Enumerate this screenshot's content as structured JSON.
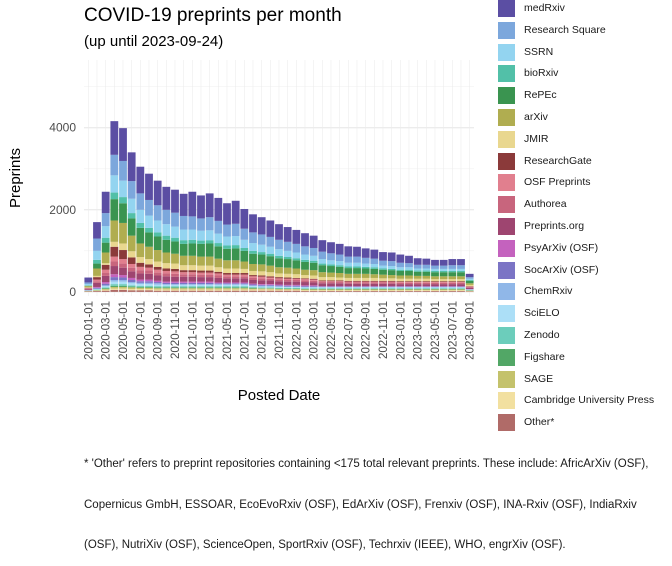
{
  "chart_data": {
    "type": "bar",
    "stacked": true,
    "title": "COVID-19 preprints per month",
    "subtitle": "(up until 2023-09-24)",
    "xlabel": "Posted Date",
    "ylabel": "Preprints",
    "ylim": [
      -100,
      5650
    ],
    "yticks": [
      0,
      2000,
      4000
    ],
    "grid": true,
    "legend_position": "right",
    "categories": [
      "2020-01-01",
      "2020-02-01",
      "2020-03-01",
      "2020-04-01",
      "2020-05-01",
      "2020-06-01",
      "2020-07-01",
      "2020-08-01",
      "2020-09-01",
      "2020-10-01",
      "2020-11-01",
      "2020-12-01",
      "2021-01-01",
      "2021-02-01",
      "2021-03-01",
      "2021-04-01",
      "2021-05-01",
      "2021-06-01",
      "2021-07-01",
      "2021-08-01",
      "2021-09-01",
      "2021-10-01",
      "2021-11-01",
      "2021-12-01",
      "2022-01-01",
      "2022-02-01",
      "2022-03-01",
      "2022-04-01",
      "2022-05-01",
      "2022-06-01",
      "2022-07-01",
      "2022-08-01",
      "2022-09-01",
      "2022-10-01",
      "2022-11-01",
      "2022-12-01",
      "2023-01-01",
      "2023-02-01",
      "2023-03-01",
      "2023-04-01",
      "2023-05-01",
      "2023-06-01",
      "2023-07-01",
      "2023-08-01",
      "2023-09-01"
    ],
    "tick_labels": [
      "2020-01-01",
      "2020-03-01",
      "2020-05-01",
      "2020-07-01",
      "2020-09-01",
      "2020-11-01",
      "2021-01-01",
      "2021-03-01",
      "2021-05-01",
      "2021-07-01",
      "2021-09-01",
      "2021-11-01",
      "2022-01-01",
      "2022-03-01",
      "2022-05-01",
      "2022-07-01",
      "2022-09-01",
      "2022-11-01",
      "2023-01-01",
      "2023-03-01",
      "2023-05-01",
      "2023-07-01",
      "2023-09-01"
    ],
    "series": [
      {
        "name": "medRxiv",
        "color": "#5b4ea3",
        "values": [
          120,
          400,
          520,
          820,
          800,
          700,
          650,
          640,
          600,
          560,
          560,
          540,
          600,
          560,
          580,
          560,
          520,
          560,
          480,
          440,
          420,
          400,
          380,
          360,
          340,
          320,
          300,
          280,
          270,
          260,
          250,
          240,
          230,
          220,
          210,
          210,
          200,
          180,
          160,
          150,
          140,
          140,
          150,
          150,
          80
        ]
      },
      {
        "name": "Research Square",
        "color": "#7ca7dc",
        "values": [
          40,
          300,
          320,
          500,
          480,
          430,
          400,
          380,
          370,
          350,
          340,
          330,
          320,
          300,
          320,
          310,
          290,
          300,
          270,
          260,
          250,
          240,
          230,
          220,
          210,
          200,
          190,
          180,
          170,
          160,
          150,
          150,
          140,
          130,
          120,
          120,
          110,
          100,
          90,
          90,
          80,
          80,
          90,
          90,
          40
        ]
      },
      {
        "name": "SSRN",
        "color": "#93d4f0",
        "values": [
          30,
          220,
          280,
          420,
          400,
          350,
          320,
          300,
          290,
          280,
          270,
          260,
          250,
          240,
          240,
          230,
          220,
          220,
          200,
          190,
          180,
          170,
          160,
          150,
          140,
          130,
          120,
          110,
          100,
          100,
          90,
          90,
          80,
          80,
          70,
          70,
          60,
          60,
          50,
          50,
          50,
          50,
          50,
          50,
          30
        ]
      },
      {
        "name": "bioRxiv",
        "color": "#52c0a8",
        "values": [
          10,
          90,
          120,
          160,
          150,
          130,
          120,
          110,
          100,
          100,
          90,
          90,
          90,
          80,
          80,
          80,
          80,
          80,
          70,
          70,
          60,
          60,
          60,
          50,
          50,
          50,
          50,
          40,
          40,
          40,
          40,
          40,
          40,
          40,
          30,
          30,
          30,
          30,
          30,
          30,
          30,
          30,
          30,
          30,
          20
        ]
      },
      {
        "name": "RePEc",
        "color": "#3a9450",
        "values": [
          10,
          120,
          240,
          520,
          480,
          420,
          380,
          350,
          330,
          310,
          300,
          290,
          300,
          310,
          320,
          300,
          280,
          290,
          260,
          250,
          240,
          230,
          220,
          210,
          200,
          190,
          180,
          170,
          160,
          150,
          140,
          140,
          130,
          130,
          120,
          120,
          110,
          110,
          100,
          100,
          100,
          100,
          100,
          100,
          60
        ]
      },
      {
        "name": "arXiv",
        "color": "#b0ad50",
        "values": [
          30,
          180,
          260,
          520,
          500,
          380,
          330,
          300,
          280,
          260,
          240,
          230,
          230,
          220,
          220,
          210,
          200,
          200,
          180,
          170,
          170,
          160,
          150,
          150,
          140,
          130,
          130,
          120,
          110,
          110,
          100,
          100,
          100,
          90,
          90,
          80,
          80,
          80,
          70,
          70,
          70,
          70,
          70,
          70,
          40
        ]
      },
      {
        "name": "JMIR",
        "color": "#e9d78f",
        "values": [
          10,
          30,
          40,
          120,
          160,
          150,
          140,
          130,
          130,
          130,
          130,
          120,
          120,
          120,
          120,
          110,
          110,
          110,
          100,
          100,
          100,
          100,
          90,
          90,
          90,
          80,
          80,
          80,
          80,
          70,
          70,
          70,
          70,
          70,
          60,
          60,
          60,
          60,
          60,
          60,
          50,
          50,
          50,
          50,
          30
        ]
      },
      {
        "name": "ResearchGate",
        "color": "#8b3a3a",
        "values": [
          10,
          60,
          120,
          240,
          220,
          160,
          100,
          80,
          70,
          60,
          60,
          50,
          50,
          50,
          50,
          40,
          40,
          40,
          40,
          30,
          30,
          30,
          30,
          30,
          20,
          20,
          20,
          20,
          20,
          20,
          20,
          20,
          20,
          20,
          20,
          20,
          20,
          20,
          20,
          20,
          20,
          20,
          20,
          20,
          10
        ]
      },
      {
        "name": "OSF Preprints",
        "color": "#e17f8e",
        "values": [
          10,
          40,
          80,
          120,
          110,
          90,
          80,
          70,
          70,
          60,
          60,
          50,
          50,
          50,
          50,
          50,
          40,
          40,
          40,
          40,
          40,
          30,
          30,
          30,
          30,
          30,
          30,
          20,
          20,
          20,
          20,
          20,
          20,
          20,
          20,
          20,
          20,
          20,
          20,
          20,
          20,
          20,
          20,
          20,
          10
        ]
      },
      {
        "name": "Authorea",
        "color": "#c8657d",
        "values": [
          10,
          40,
          70,
          110,
          100,
          90,
          80,
          80,
          70,
          70,
          70,
          60,
          60,
          60,
          60,
          60,
          50,
          50,
          50,
          50,
          50,
          40,
          40,
          40,
          40,
          40,
          40,
          30,
          30,
          30,
          30,
          30,
          30,
          30,
          30,
          30,
          30,
          30,
          30,
          30,
          30,
          30,
          30,
          30,
          20
        ]
      },
      {
        "name": "Preprints.org",
        "color": "#9e4570",
        "values": [
          20,
          100,
          150,
          200,
          180,
          160,
          150,
          140,
          130,
          130,
          120,
          120,
          120,
          110,
          110,
          110,
          100,
          100,
          100,
          90,
          90,
          90,
          80,
          80,
          80,
          80,
          70,
          70,
          70,
          70,
          60,
          60,
          60,
          60,
          60,
          60,
          50,
          50,
          50,
          50,
          50,
          50,
          50,
          50,
          30
        ]
      },
      {
        "name": "PsyArXiv (OSF)",
        "color": "#c462be",
        "values": [
          5,
          20,
          40,
          70,
          60,
          50,
          40,
          40,
          30,
          30,
          30,
          30,
          30,
          30,
          30,
          20,
          20,
          20,
          20,
          20,
          20,
          20,
          20,
          20,
          20,
          20,
          20,
          10,
          10,
          10,
          10,
          10,
          10,
          10,
          10,
          10,
          10,
          10,
          10,
          10,
          10,
          10,
          10,
          10,
          5
        ]
      },
      {
        "name": "SocArXiv (OSF)",
        "color": "#7b74c5",
        "values": [
          5,
          20,
          40,
          70,
          60,
          50,
          40,
          40,
          30,
          30,
          30,
          30,
          30,
          30,
          30,
          20,
          20,
          20,
          20,
          20,
          20,
          20,
          20,
          20,
          20,
          20,
          20,
          10,
          10,
          10,
          10,
          10,
          10,
          10,
          10,
          10,
          10,
          10,
          10,
          10,
          10,
          10,
          10,
          10,
          5
        ]
      },
      {
        "name": "ChemRxiv",
        "color": "#90b7e8",
        "values": [
          5,
          10,
          20,
          40,
          40,
          30,
          30,
          30,
          30,
          20,
          20,
          20,
          20,
          20,
          20,
          20,
          20,
          20,
          20,
          20,
          20,
          20,
          20,
          10,
          10,
          10,
          10,
          10,
          10,
          10,
          10,
          10,
          10,
          10,
          10,
          10,
          10,
          10,
          10,
          10,
          10,
          10,
          10,
          10,
          5
        ]
      },
      {
        "name": "SciELO",
        "color": "#acdff7",
        "values": [
          5,
          10,
          30,
          60,
          60,
          50,
          40,
          40,
          40,
          30,
          30,
          30,
          30,
          30,
          30,
          30,
          30,
          30,
          30,
          20,
          20,
          20,
          20,
          20,
          20,
          20,
          20,
          20,
          20,
          20,
          20,
          20,
          20,
          20,
          20,
          20,
          20,
          20,
          20,
          20,
          20,
          20,
          20,
          20,
          10
        ]
      },
      {
        "name": "Zenodo",
        "color": "#6ccdbb",
        "values": [
          5,
          10,
          20,
          40,
          40,
          30,
          30,
          30,
          30,
          30,
          30,
          30,
          30,
          30,
          30,
          30,
          30,
          30,
          30,
          20,
          20,
          20,
          20,
          20,
          20,
          20,
          20,
          20,
          20,
          20,
          20,
          20,
          20,
          20,
          20,
          20,
          20,
          20,
          20,
          20,
          20,
          20,
          20,
          20,
          10
        ]
      },
      {
        "name": "Figshare",
        "color": "#52a766",
        "values": [
          5,
          10,
          20,
          30,
          30,
          20,
          20,
          20,
          20,
          20,
          20,
          20,
          20,
          20,
          20,
          20,
          20,
          20,
          20,
          20,
          10,
          10,
          10,
          10,
          10,
          10,
          10,
          10,
          10,
          10,
          10,
          10,
          10,
          10,
          10,
          10,
          10,
          10,
          10,
          10,
          10,
          10,
          10,
          10,
          5
        ]
      },
      {
        "name": "SAGE",
        "color": "#c4c26c",
        "values": [
          5,
          10,
          20,
          40,
          40,
          40,
          30,
          30,
          30,
          30,
          30,
          30,
          30,
          30,
          30,
          30,
          30,
          30,
          30,
          20,
          20,
          20,
          20,
          20,
          20,
          20,
          20,
          20,
          20,
          20,
          20,
          20,
          20,
          20,
          20,
          20,
          20,
          20,
          20,
          20,
          20,
          20,
          20,
          20,
          10
        ]
      },
      {
        "name": "Cambridge University Press",
        "color": "#f2e0a0",
        "values": [
          5,
          10,
          20,
          30,
          30,
          30,
          30,
          30,
          30,
          30,
          30,
          30,
          30,
          30,
          30,
          30,
          30,
          30,
          30,
          30,
          30,
          30,
          20,
          20,
          20,
          20,
          20,
          20,
          20,
          20,
          20,
          20,
          20,
          20,
          20,
          20,
          20,
          20,
          20,
          20,
          20,
          20,
          20,
          20,
          10
        ]
      },
      {
        "name": "Other*",
        "color": "#b06b68",
        "values": [
          10,
          20,
          30,
          50,
          50,
          40,
          40,
          40,
          30,
          30,
          30,
          30,
          30,
          30,
          30,
          30,
          30,
          30,
          30,
          30,
          30,
          30,
          30,
          30,
          30,
          20,
          20,
          20,
          20,
          20,
          20,
          20,
          20,
          20,
          20,
          20,
          20,
          20,
          20,
          20,
          20,
          20,
          20,
          20,
          10
        ]
      }
    ]
  },
  "caption": "* 'Other' refers to preprint repositories containing <175 total relevant preprints. These include: AfricArXiv (OSF), Copernicus GmbH, ESSOAR, EcoEvoRxiv (OSF), EdArXiv (OSF), Frenxiv (OSF), INA-Rxiv (OSF), IndiaRxiv (OSF), NutriXiv (OSF), ScienceOpen, SportRxiv (OSF), Techrxiv (IEEE), WHO, engrXiv (OSF).",
  "caption_lines": [
    "* 'Other' refers to preprint repositories containing <175 total relevant preprints. These include: AfricArXiv (OSF),",
    "Copernicus GmbH, ESSOAR, EcoEvoRxiv (OSF), EdArXiv (OSF), Frenxiv (OSF), INA-Rxiv (OSF), IndiaRxiv",
    "(OSF), NutriXiv (OSF), ScienceOpen, SportRxiv (OSF), Techrxiv (IEEE), WHO, engrXiv (OSF)."
  ]
}
